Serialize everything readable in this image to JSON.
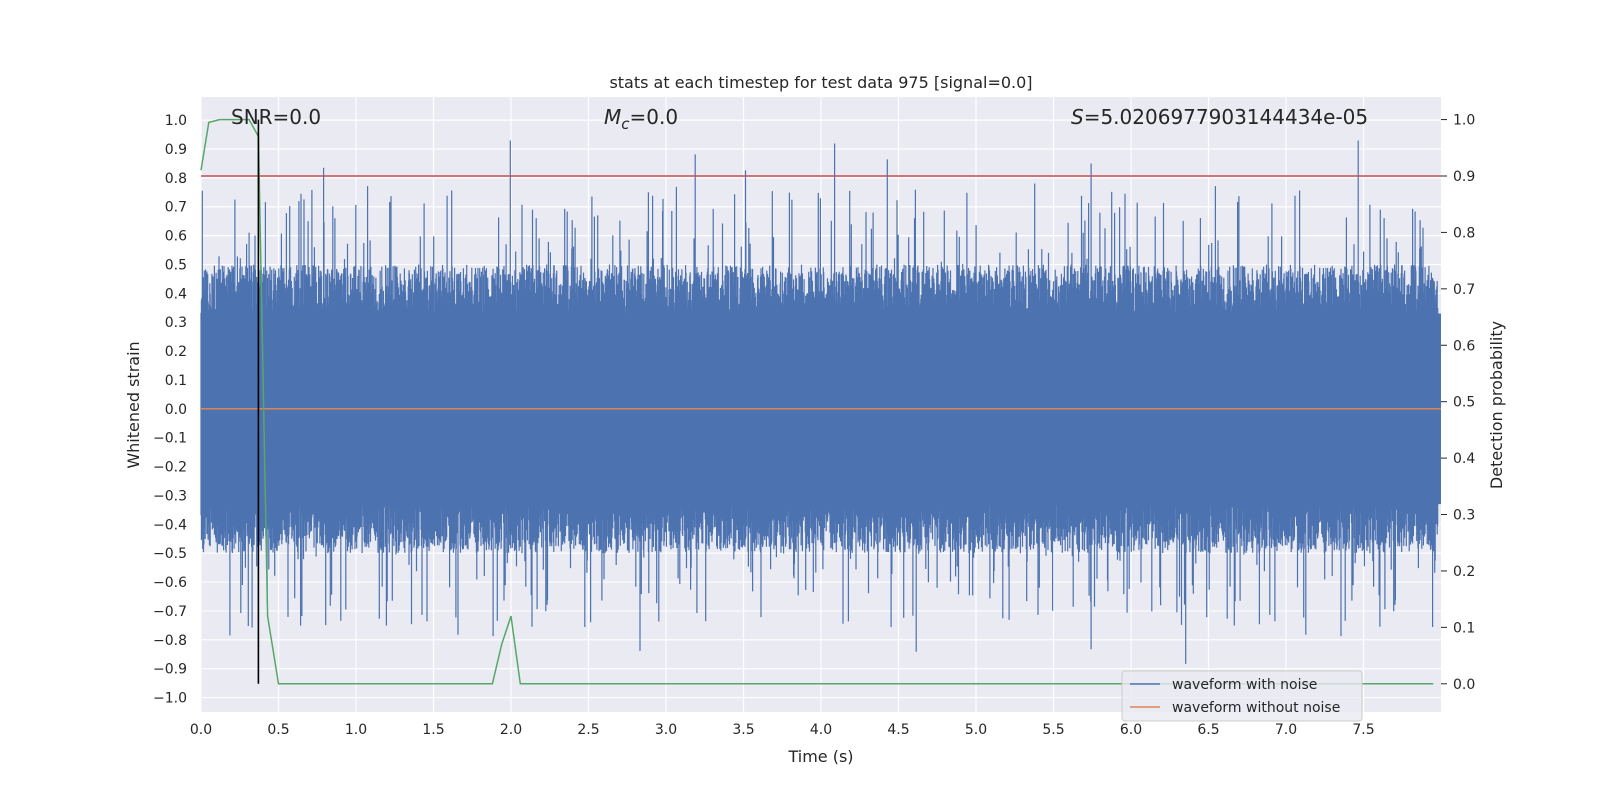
{
  "chart_data": {
    "type": "line",
    "title": "stats at each timestep for test data 975 [signal=0.0]",
    "xlabel": "Time (s)",
    "ylabel": "Whitened strain",
    "ylabel_right": "Detection probability",
    "xlim": [
      0.0,
      8.0
    ],
    "ylim": [
      -1.05,
      1.08
    ],
    "ylim_right": [
      -0.05,
      1.04
    ],
    "x_ticks": [
      0.0,
      0.5,
      1.0,
      1.5,
      2.0,
      2.5,
      3.0,
      3.5,
      4.0,
      4.5,
      5.0,
      5.5,
      6.0,
      6.5,
      7.0,
      7.5
    ],
    "x_tick_labels": [
      "0.0",
      "0.5",
      "1.0",
      "1.5",
      "2.0",
      "2.5",
      "3.0",
      "3.5",
      "4.0",
      "4.5",
      "5.0",
      "5.5",
      "6.0",
      "6.5",
      "7.0",
      "7.5"
    ],
    "y_ticks": [
      1.0,
      0.9,
      0.8,
      0.7,
      0.6,
      0.5,
      0.4,
      0.3,
      0.2,
      0.1,
      0.0,
      -0.1,
      -0.2,
      -0.3,
      -0.4,
      -0.5,
      -0.6,
      -0.7,
      -0.8,
      -0.9,
      -1.0
    ],
    "y_tick_labels": [
      "1.0",
      "0.9",
      "0.8",
      "0.7",
      "0.6",
      "0.5",
      "0.4",
      "0.3",
      "0.2",
      "0.1",
      "0.0",
      "−0.1",
      "−0.2",
      "−0.3",
      "−0.4",
      "−0.5",
      "−0.6",
      "−0.7",
      "−0.8",
      "−0.9",
      "−1.0"
    ],
    "y_right_ticks": [
      1.0,
      0.9,
      0.8,
      0.7,
      0.6,
      0.5,
      0.4,
      0.3,
      0.2,
      0.1,
      0.0
    ],
    "y_right_tick_labels": [
      "1.0",
      "0.9",
      "0.8",
      "0.7",
      "0.6",
      "0.5",
      "0.4",
      "0.3",
      "0.2",
      "0.1",
      "0.0"
    ],
    "grid": true,
    "annotations": {
      "snr": "SNR=0.0",
      "mc_symbol": "M",
      "mc_sub": "c",
      "mc_value": "=0.0",
      "s_symbol": "S",
      "s_value": "=5.0206977903144434e-05"
    },
    "noise_envelope": {
      "description_seed": 975,
      "core_band": [
        -0.33,
        0.33
      ],
      "spike_max": 0.94,
      "spike_min": -0.94,
      "step_s": 0.0027
    },
    "series": [
      {
        "name": "waveform with noise",
        "color": "#4c72b0",
        "axis": "left"
      },
      {
        "name": "waveform without noise",
        "color": "#dd8452",
        "axis": "left",
        "x": [
          0.0,
          8.0
        ],
        "y": [
          0.0,
          0.0
        ]
      },
      {
        "name": "detection probability",
        "color": "#55a868",
        "axis": "right",
        "x": [
          0.0,
          0.05,
          0.12,
          0.25,
          0.31,
          0.37,
          0.4,
          0.43,
          0.5,
          0.55,
          1.0,
          1.5,
          1.88,
          1.94,
          2.0,
          2.06,
          2.5,
          3.0,
          3.5,
          4.0,
          4.5,
          5.0,
          5.5,
          6.0,
          6.5,
          7.0,
          7.5,
          7.95
        ],
        "y": [
          0.91,
          0.995,
          1.0,
          1.0,
          1.0,
          0.97,
          0.55,
          0.12,
          0.0,
          0.0,
          0.0,
          0.0,
          0.0,
          0.07,
          0.12,
          0.0,
          0.0,
          0.0,
          0.0,
          0.0,
          0.0,
          0.0,
          0.0,
          0.0,
          0.0,
          0.0,
          0.0,
          0.0
        ]
      },
      {
        "name": "threshold",
        "color": "#c44e52",
        "axis": "right",
        "x": [
          0.0,
          8.0
        ],
        "y": [
          0.9,
          0.9
        ]
      },
      {
        "name": "marker",
        "color": "#000000",
        "axis": "right",
        "x": [
          0.37,
          0.37
        ],
        "y": [
          0.0,
          1.0
        ]
      }
    ],
    "legend": {
      "position": "lower-right",
      "entries": [
        {
          "label": "waveform with noise",
          "color": "#4c72b0"
        },
        {
          "label": "waveform without noise",
          "color": "#dd8452"
        }
      ]
    },
    "colors": {
      "plot_bg": "#eaeaf2",
      "grid": "#ffffff",
      "noise": "#4c72b0",
      "clean": "#dd8452",
      "prob": "#55a868",
      "threshold": "#c44e52",
      "marker": "#000000"
    }
  }
}
